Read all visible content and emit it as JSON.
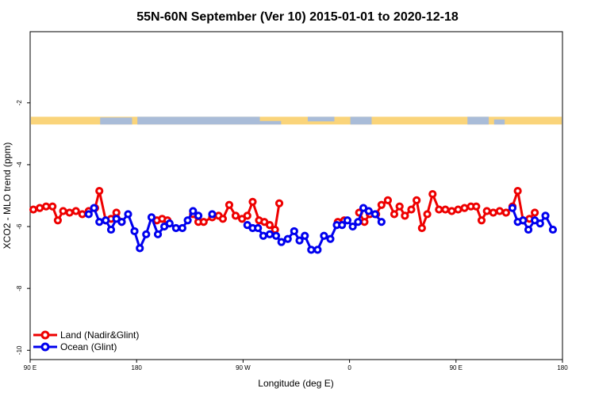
{
  "chart_data": {
    "type": "line",
    "title": "55N-60N September (Ver 10)   2015-01-01 to 2020-12-18",
    "xlabel": "Longitude (deg E)",
    "ylabel": "XCO2 - MLO trend (ppm)",
    "xlim": [
      0,
      100
    ],
    "ylim": [
      -10.3,
      0.3
    ],
    "x_ticks": [
      {
        "pos": 0,
        "label": "90 E"
      },
      {
        "pos": 20,
        "label": "180"
      },
      {
        "pos": 40,
        "label": "90 W"
      },
      {
        "pos": 60,
        "label": "0"
      },
      {
        "pos": 80,
        "label": "90 E"
      },
      {
        "pos": 100,
        "label": "180"
      }
    ],
    "y_ticks": [
      {
        "value": -2,
        "label": "-2"
      },
      {
        "value": -4,
        "label": "-4"
      },
      {
        "value": -6,
        "label": "-6"
      },
      {
        "value": -8,
        "label": "-8"
      },
      {
        "value": -10,
        "label": "-10"
      }
    ],
    "map_strip": {
      "ymin": -2.7,
      "ymax": -2.45,
      "land_color": "#fad47a",
      "ocean_color": "#a9bcd8"
    },
    "series": [
      {
        "name": "Land (Nadir&Glint)",
        "color": "#ee0000",
        "segments": [
          [
            [
              0.6,
              -5.45
            ],
            [
              1.8,
              -5.4
            ],
            [
              3.0,
              -5.35
            ],
            [
              4.2,
              -5.35
            ],
            [
              5.2,
              -5.8
            ],
            [
              6.2,
              -5.5
            ],
            [
              7.4,
              -5.55
            ],
            [
              8.6,
              -5.5
            ],
            [
              9.8,
              -5.6
            ],
            [
              11.0,
              -5.5
            ],
            [
              12.2,
              -5.4
            ],
            [
              13.0,
              -4.85
            ],
            [
              14.2,
              -5.8
            ],
            [
              15.2,
              -5.75
            ],
            [
              16.2,
              -5.55
            ],
            [
              17.2,
              -5.85
            ]
          ],
          [
            [
              23.8,
              -5.8
            ],
            [
              24.8,
              -5.75
            ],
            [
              25.8,
              -5.8
            ]
          ],
          [
            [
              30.6,
              -5.6
            ],
            [
              31.6,
              -5.85
            ],
            [
              32.6,
              -5.85
            ],
            [
              34.2,
              -5.7
            ],
            [
              35.4,
              -5.65
            ],
            [
              36.2,
              -5.75
            ],
            [
              37.4,
              -5.3
            ],
            [
              38.6,
              -5.65
            ],
            [
              39.8,
              -5.75
            ],
            [
              40.8,
              -5.65
            ],
            [
              41.8,
              -5.2
            ],
            [
              43.0,
              -5.8
            ],
            [
              44.0,
              -5.85
            ],
            [
              45.0,
              -5.95
            ],
            [
              46.0,
              -6.1
            ],
            [
              46.8,
              -5.25
            ]
          ],
          [
            [
              57.8,
              -5.85
            ],
            [
              59.0,
              -5.8
            ]
          ],
          [
            [
              61.8,
              -5.55
            ],
            [
              62.8,
              -5.85
            ],
            [
              63.8,
              -5.6
            ],
            [
              65.0,
              -5.6
            ],
            [
              66.0,
              -5.3
            ],
            [
              67.2,
              -5.15
            ],
            [
              68.4,
              -5.6
            ],
            [
              69.4,
              -5.35
            ],
            [
              70.4,
              -5.65
            ],
            [
              71.6,
              -5.45
            ],
            [
              72.6,
              -5.15
            ],
            [
              73.6,
              -6.05
            ],
            [
              74.6,
              -5.6
            ],
            [
              75.6,
              -4.95
            ],
            [
              76.8,
              -5.45
            ],
            [
              78.0,
              -5.45
            ],
            [
              79.2,
              -5.5
            ],
            [
              80.4,
              -5.45
            ],
            [
              81.6,
              -5.4
            ],
            [
              82.8,
              -5.35
            ],
            [
              83.8,
              -5.35
            ],
            [
              84.8,
              -5.8
            ],
            [
              85.8,
              -5.5
            ],
            [
              87.0,
              -5.55
            ],
            [
              88.2,
              -5.5
            ],
            [
              89.4,
              -5.55
            ],
            [
              90.6,
              -5.35
            ],
            [
              91.6,
              -4.85
            ],
            [
              92.6,
              -5.8
            ],
            [
              93.8,
              -5.75
            ],
            [
              94.8,
              -5.55
            ]
          ]
        ]
      },
      {
        "name": "Ocean (Glint)",
        "color": "#0000ee",
        "segments": [
          [
            [
              11.0,
              -5.6
            ],
            [
              12.0,
              -5.4
            ],
            [
              13.0,
              -5.85
            ],
            [
              14.2,
              -5.8
            ],
            [
              15.2,
              -6.1
            ],
            [
              16.2,
              -5.75
            ],
            [
              17.2,
              -5.85
            ],
            [
              18.4,
              -5.6
            ],
            [
              19.6,
              -6.15
            ],
            [
              20.6,
              -6.7
            ],
            [
              21.8,
              -6.25
            ],
            [
              22.8,
              -5.7
            ],
            [
              24.0,
              -6.25
            ],
            [
              25.2,
              -6.0
            ],
            [
              26.2,
              -5.9
            ],
            [
              27.4,
              -6.05
            ],
            [
              28.6,
              -6.05
            ],
            [
              29.6,
              -5.8
            ],
            [
              30.6,
              -5.5
            ],
            [
              31.6,
              -5.65
            ]
          ],
          [
            [
              34.2,
              -5.6
            ]
          ],
          [
            [
              40.8,
              -5.95
            ],
            [
              41.8,
              -6.05
            ],
            [
              42.8,
              -6.05
            ],
            [
              43.8,
              -6.3
            ],
            [
              45.0,
              -6.25
            ],
            [
              46.2,
              -6.3
            ],
            [
              47.2,
              -6.5
            ],
            [
              48.4,
              -6.4
            ],
            [
              49.6,
              -6.15
            ],
            [
              50.6,
              -6.45
            ],
            [
              51.6,
              -6.3
            ],
            [
              52.8,
              -6.75
            ],
            [
              54.0,
              -6.75
            ],
            [
              55.2,
              -6.3
            ],
            [
              56.4,
              -6.4
            ],
            [
              57.6,
              -5.95
            ],
            [
              58.6,
              -5.95
            ],
            [
              59.6,
              -5.8
            ],
            [
              60.6,
              -6.0
            ],
            [
              61.6,
              -5.85
            ],
            [
              62.6,
              -5.4
            ],
            [
              63.6,
              -5.5
            ],
            [
              64.8,
              -5.6
            ],
            [
              66.0,
              -5.85
            ]
          ],
          [
            [
              90.6,
              -5.4
            ],
            [
              91.6,
              -5.85
            ],
            [
              92.6,
              -5.8
            ],
            [
              93.6,
              -6.1
            ],
            [
              94.8,
              -5.8
            ],
            [
              95.8,
              -5.9
            ],
            [
              96.8,
              -5.65
            ],
            [
              98.2,
              -6.1
            ]
          ]
        ]
      }
    ],
    "legend": {
      "placement": "bottom-left",
      "entries": [
        "Land (Nadir&Glint)",
        "Ocean (Glint)"
      ]
    }
  }
}
